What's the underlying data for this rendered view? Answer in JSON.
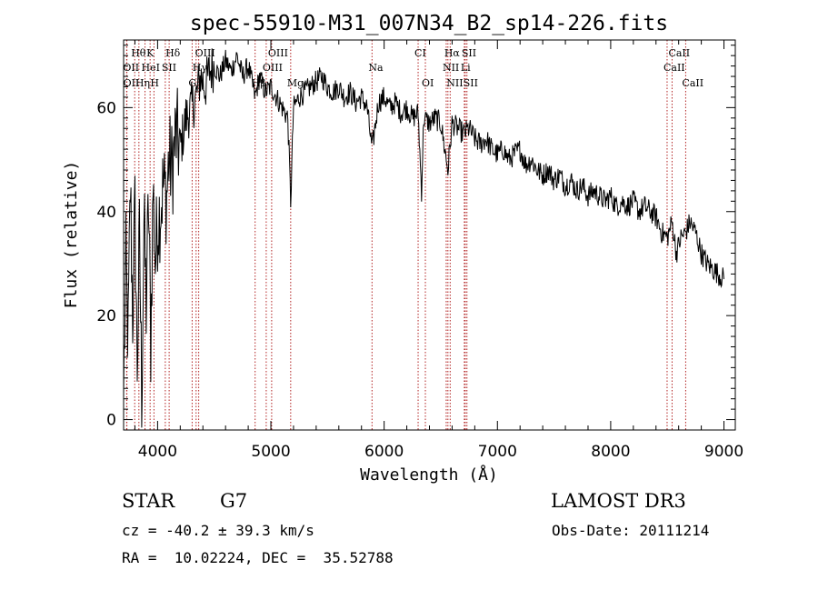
{
  "chart_data": {
    "type": "line",
    "title": "spec-55910-M31_007N34_B2_sp14-226.fits",
    "xlabel": "Wavelength (Å)",
    "ylabel": "Flux (relative)",
    "xlim": [
      3700,
      9100
    ],
    "ylim": [
      -2,
      73
    ],
    "x_ticks": [
      4000,
      5000,
      6000,
      7000,
      8000,
      9000
    ],
    "y_ticks": [
      0,
      20,
      40,
      60
    ],
    "grid": false,
    "series": [
      {
        "name": "flux",
        "x": [
          3700,
          3720,
          3740,
          3760,
          3780,
          3800,
          3820,
          3840,
          3860,
          3880,
          3900,
          3920,
          3940,
          3960,
          3980,
          4000,
          4020,
          4050,
          4080,
          4100,
          4130,
          4160,
          4200,
          4250,
          4300,
          4340,
          4380,
          4420,
          4460,
          4500,
          4550,
          4600,
          4650,
          4700,
          4750,
          4800,
          4861,
          4900,
          4950,
          5000,
          5050,
          5100,
          5150,
          5175,
          5200,
          5250,
          5300,
          5350,
          5400,
          5450,
          5500,
          5550,
          5600,
          5650,
          5700,
          5750,
          5800,
          5850,
          5893,
          5950,
          6000,
          6050,
          6100,
          6150,
          6200,
          6250,
          6300,
          6330,
          6350,
          6400,
          6450,
          6500,
          6563,
          6600,
          6650,
          6700,
          6750,
          6800,
          6850,
          6900,
          6950,
          7000,
          7050,
          7100,
          7150,
          7200,
          7250,
          7300,
          7350,
          7400,
          7450,
          7500,
          7550,
          7600,
          7650,
          7700,
          7750,
          7800,
          7850,
          7900,
          7950,
          8000,
          8050,
          8100,
          8150,
          8200,
          8250,
          8300,
          8350,
          8400,
          8450,
          8500,
          8542,
          8580,
          8620,
          8662,
          8700,
          8750,
          8800,
          8850,
          8900,
          8950,
          9000
        ],
        "values": [
          5,
          30,
          15,
          45,
          20,
          40,
          10,
          35,
          5,
          38,
          22,
          42,
          15,
          45,
          30,
          38,
          40,
          45,
          43,
          50,
          48,
          55,
          52,
          58,
          60,
          62,
          66,
          64,
          67,
          68,
          66,
          69,
          67,
          70,
          66,
          68,
          62,
          66,
          63,
          64,
          62,
          60,
          58,
          42,
          60,
          62,
          63,
          64,
          65,
          66,
          64,
          63,
          64,
          62,
          63,
          61,
          62,
          60,
          52,
          61,
          62,
          60,
          61,
          59,
          60,
          58,
          59,
          44,
          58,
          57,
          58,
          57,
          48,
          57,
          56,
          55,
          56,
          54,
          53,
          54,
          52,
          51,
          52,
          50,
          51,
          52,
          49,
          50,
          48,
          47,
          48,
          46,
          47,
          45,
          46,
          44,
          45,
          43,
          44,
          43,
          42,
          43,
          41,
          42,
          41,
          42,
          40,
          41,
          40,
          39,
          36,
          35,
          38,
          32,
          35,
          36,
          38,
          36,
          32,
          30,
          29,
          28,
          27
        ]
      }
    ],
    "line_markers": [
      {
        "label": "Hθ",
        "x": 3798,
        "row": 0
      },
      {
        "label": "K",
        "x": 3934,
        "row": 0
      },
      {
        "label": "Hδ",
        "x": 4102,
        "row": 0
      },
      {
        "label": "OIII",
        "x": 4363,
        "row": 0
      },
      {
        "label": "OIII",
        "x": 5007,
        "row": 0
      },
      {
        "label": "CI",
        "x": 6300,
        "row": 0
      },
      {
        "label": "Hα",
        "x": 6563,
        "row": 0
      },
      {
        "label": "SII",
        "x": 6716,
        "row": 0
      },
      {
        "label": "CaII",
        "x": 8542,
        "row": 0
      },
      {
        "label": "OII",
        "x": 3727,
        "row": 1
      },
      {
        "label": "HeI",
        "x": 3889,
        "row": 1
      },
      {
        "label": "SII",
        "x": 4068,
        "row": 1
      },
      {
        "label": "Hγ",
        "x": 4340,
        "row": 1
      },
      {
        "label": "OIII",
        "x": 4959,
        "row": 1
      },
      {
        "label": "Na",
        "x": 5893,
        "row": 1
      },
      {
        "label": "NII",
        "x": 6548,
        "row": 1
      },
      {
        "label": "Li",
        "x": 6708,
        "row": 1
      },
      {
        "label": "CaII",
        "x": 8498,
        "row": 1
      },
      {
        "label": "OII",
        "x": 3729,
        "row": 2
      },
      {
        "label": "Hη",
        "x": 3835,
        "row": 2
      },
      {
        "label": "H",
        "x": 3968,
        "row": 2
      },
      {
        "label": "G",
        "x": 4305,
        "row": 2
      },
      {
        "label": "Hβ",
        "x": 4861,
        "row": 2
      },
      {
        "label": "Mg",
        "x": 5175,
        "row": 2
      },
      {
        "label": "OI",
        "x": 6364,
        "row": 2
      },
      {
        "label": "NII",
        "x": 6583,
        "row": 2
      },
      {
        "label": "SII",
        "x": 6731,
        "row": 2
      },
      {
        "label": "CaII",
        "x": 8662,
        "row": 2
      }
    ]
  },
  "info": {
    "object_class": "STAR",
    "subclass": "G7",
    "survey": "LAMOST DR3",
    "redshift": "cz = -40.2 ± 39.3 km/s",
    "obs_date": "Obs-Date: 20111214",
    "coords": "RA =  10.02224, DEC =  35.52788"
  },
  "colors": {
    "line": "#000000",
    "marker": "#b22222"
  }
}
